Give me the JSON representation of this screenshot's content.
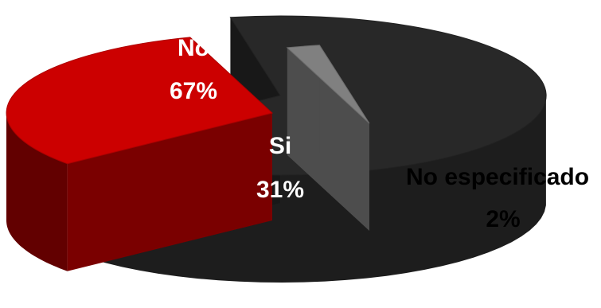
{
  "chart_data": {
    "type": "pie",
    "title": "",
    "style": "3d-exploded",
    "slices": [
      {
        "name": "No",
        "value": 67,
        "value_label": "67%",
        "color": "#282828"
      },
      {
        "name": "Si",
        "value": 31,
        "value_label": "31%",
        "color": "#cc0000"
      },
      {
        "name": "No especificado",
        "value": 2,
        "value_label": "2%",
        "color": "#808080"
      }
    ],
    "legend": "none"
  },
  "colors": {
    "label_light": "#ffffff",
    "label_dark": "#000000",
    "background": "#ffffff"
  }
}
